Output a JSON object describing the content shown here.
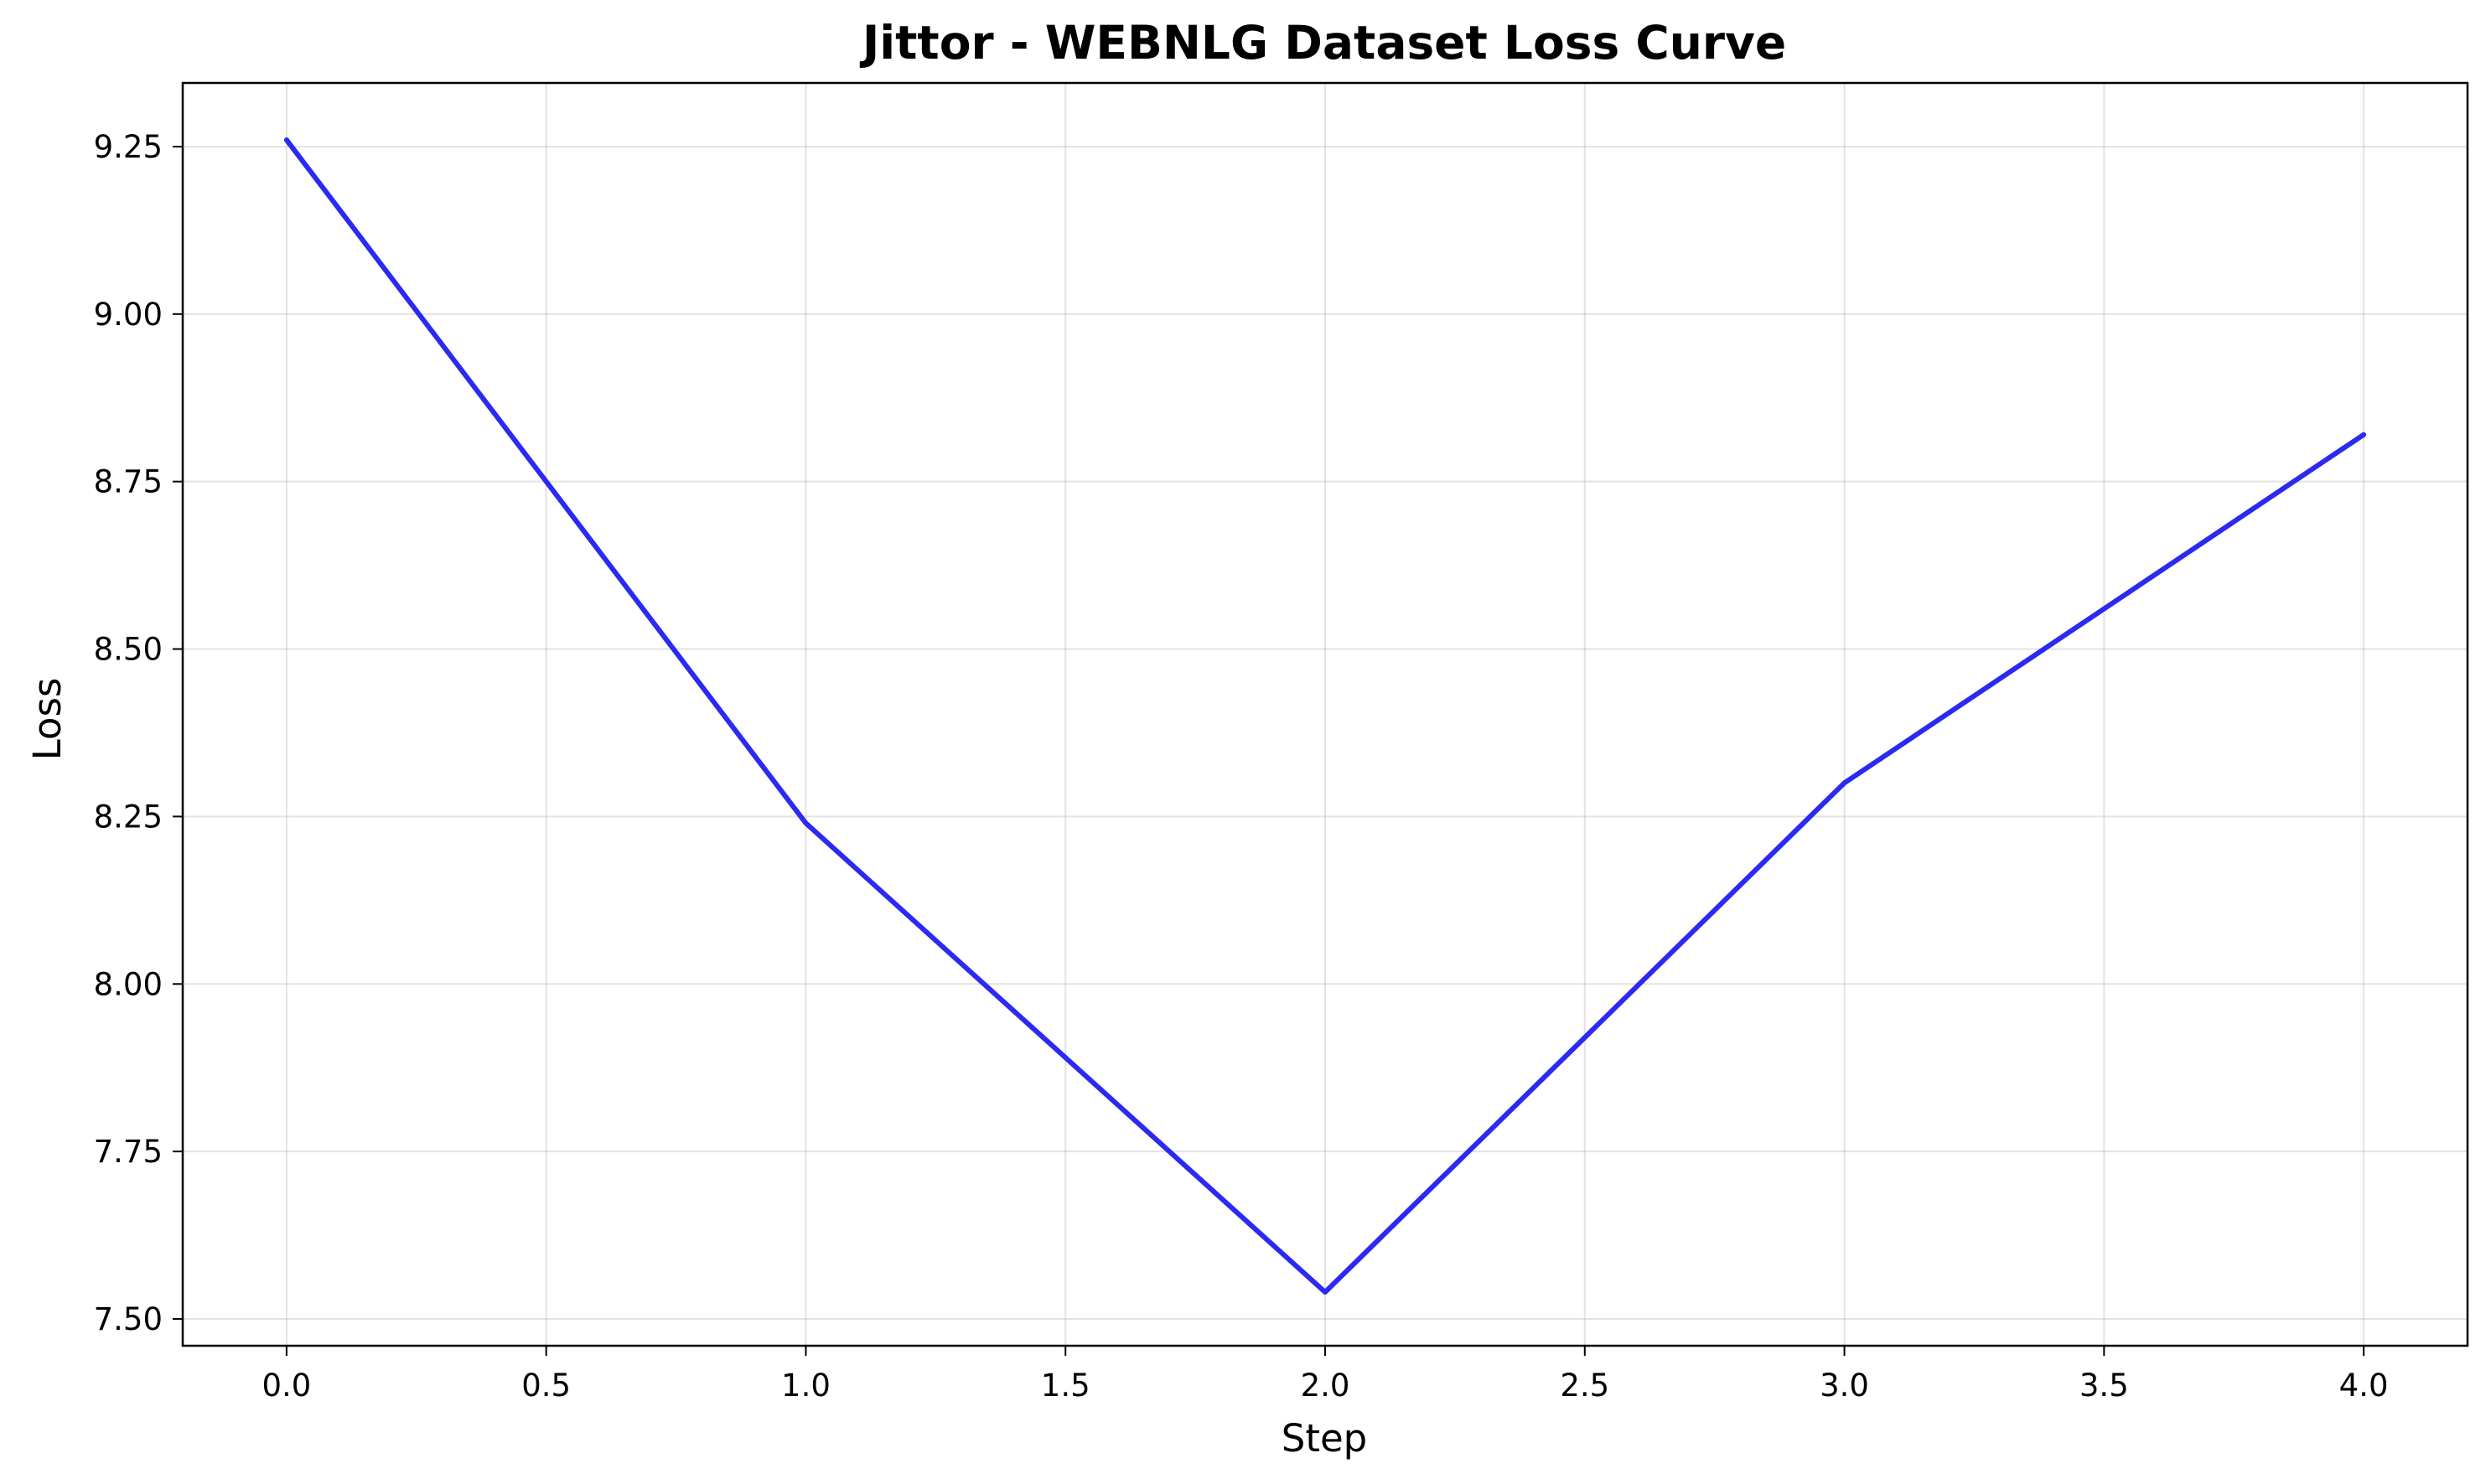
{
  "chart_data": {
    "type": "line",
    "title": "Jittor - WEBNLG Dataset Loss Curve",
    "xlabel": "Step",
    "ylabel": "Loss",
    "xlim": [
      -0.2,
      4.2
    ],
    "ylim": [
      7.46,
      9.345
    ],
    "xticks": [
      0.0,
      0.5,
      1.0,
      1.5,
      2.0,
      2.5,
      3.0,
      3.5,
      4.0
    ],
    "xtick_labels": [
      "0.0",
      "0.5",
      "1.0",
      "1.5",
      "2.0",
      "2.5",
      "3.0",
      "3.5",
      "4.0"
    ],
    "yticks": [
      7.5,
      7.75,
      8.0,
      8.25,
      8.5,
      8.75,
      9.0,
      9.25
    ],
    "ytick_labels": [
      "7.50",
      "7.75",
      "8.00",
      "8.25",
      "8.50",
      "8.75",
      "9.00",
      "9.25"
    ],
    "grid": true,
    "series": [
      {
        "color": "#2a2af2",
        "x": [
          0,
          1,
          2,
          3,
          4
        ],
        "y": [
          9.26,
          8.24,
          7.54,
          8.3,
          8.82
        ]
      }
    ]
  }
}
